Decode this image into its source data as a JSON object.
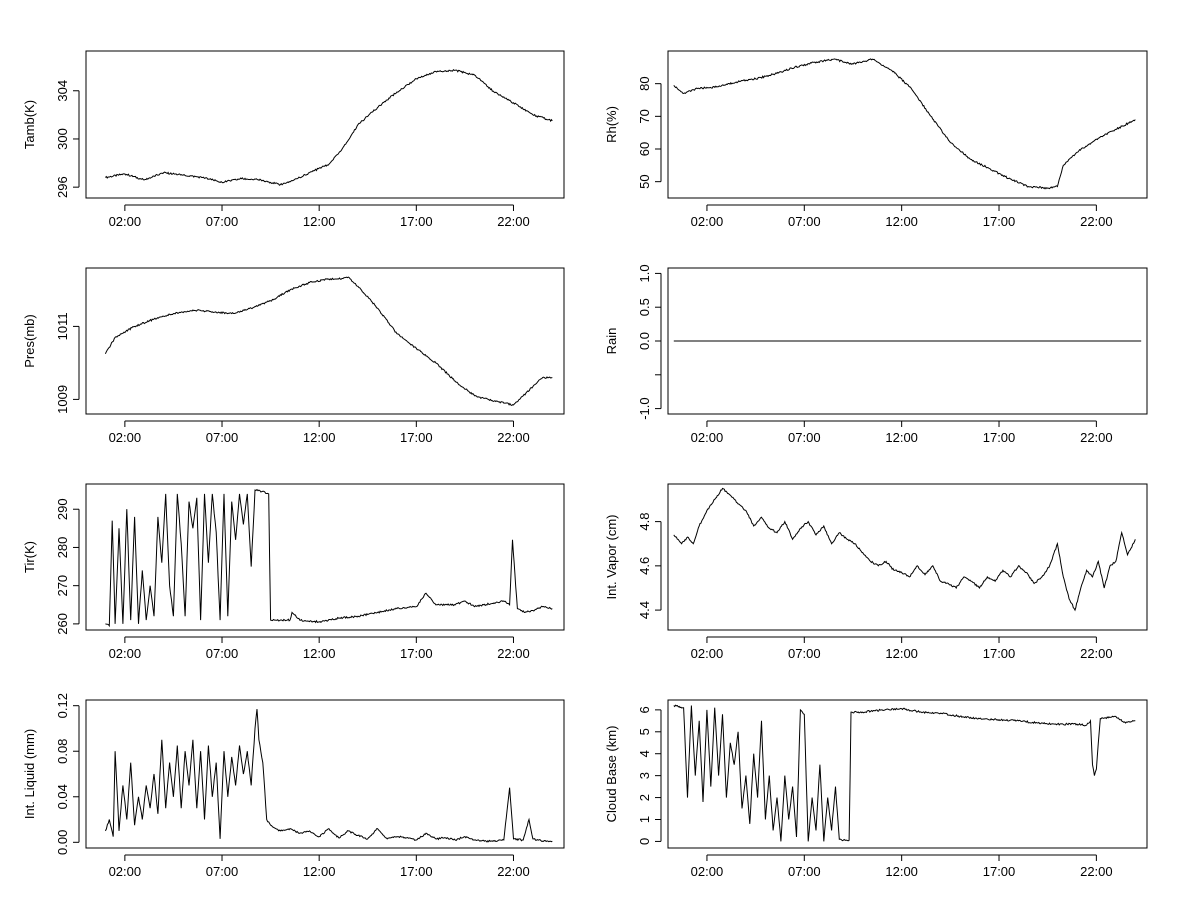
{
  "chart_data": [
    {
      "type": "line",
      "ylabel": "Tamb(K)",
      "xlabel": "",
      "xticks": [
        "02:00",
        "07:00",
        "12:00",
        "17:00",
        "22:00"
      ],
      "xtick_hours": [
        2,
        7,
        12,
        17,
        22
      ],
      "xlim": [
        0,
        24.6
      ],
      "ylim": [
        295.1,
        307.3
      ],
      "yticks": [
        296,
        300,
        304
      ],
      "ytick_labels": [
        "296",
        "300",
        "304"
      ],
      "series": [
        {
          "x": [
            1,
            2,
            3,
            4,
            5,
            6,
            7,
            8,
            9,
            10,
            11,
            11.5,
            12.5,
            13,
            13.5,
            14,
            15,
            16,
            17,
            18,
            19,
            20,
            20.5,
            21,
            22,
            23,
            24
          ],
          "y": [
            296.8,
            297.1,
            296.6,
            297.2,
            297.0,
            296.8,
            296.4,
            296.7,
            296.6,
            296.2,
            296.8,
            297.2,
            297.9,
            298.8,
            299.9,
            301.2,
            302.6,
            303.9,
            305.0,
            305.6,
            305.7,
            305.3,
            304.6,
            303.9,
            303.0,
            302.0,
            301.5
          ]
        }
      ]
    },
    {
      "type": "line",
      "ylabel": "Rh(%)",
      "xlabel": "",
      "xticks": [
        "02:00",
        "07:00",
        "12:00",
        "17:00",
        "22:00"
      ],
      "xtick_hours": [
        2,
        7,
        12,
        17,
        22
      ],
      "xlim": [
        0,
        24.6
      ],
      "ylim": [
        45,
        90
      ],
      "yticks": [
        50,
        60,
        70,
        80
      ],
      "ytick_labels": [
        "50",
        "60",
        "70",
        "80"
      ],
      "series": [
        {
          "x": [
            0.3,
            0.8,
            1.5,
            2.5,
            3.5,
            4.5,
            5.5,
            6.5,
            7.5,
            8.5,
            9.5,
            10.5,
            11.5,
            12.5,
            13.5,
            14.5,
            15.5,
            16.5,
            17.5,
            18.5,
            19.5,
            20,
            20.3,
            21,
            22,
            23,
            24
          ],
          "y": [
            79.5,
            77,
            78.5,
            79,
            80.5,
            81.5,
            83,
            85,
            86.5,
            87.5,
            86,
            87.5,
            84,
            78.5,
            70,
            62,
            57,
            54,
            51,
            48.5,
            48,
            48.5,
            55,
            59,
            63,
            66,
            69
          ]
        }
      ]
    },
    {
      "type": "line",
      "ylabel": "Pres(mb)",
      "xlabel": "",
      "xticks": [
        "02:00",
        "07:00",
        "12:00",
        "17:00",
        "22:00"
      ],
      "xtick_hours": [
        2,
        7,
        12,
        17,
        22
      ],
      "xlim": [
        0,
        24.6
      ],
      "ylim": [
        1008.6,
        1012.6
      ],
      "yticks": [
        1009,
        1011
      ],
      "ytick_labels": [
        "1009",
        "1011"
      ],
      "series": [
        {
          "x": [
            1,
            1.5,
            2.5,
            3.5,
            4.5,
            5.5,
            6.5,
            7.5,
            8.5,
            9.5,
            10.5,
            11.5,
            12.5,
            13,
            13.5,
            14,
            15,
            16,
            17,
            18,
            19,
            20,
            21,
            21.5,
            22,
            22.5,
            23,
            23.5,
            24
          ],
          "y": [
            1010.25,
            1010.7,
            1011,
            1011.2,
            1011.35,
            1011.45,
            1011.4,
            1011.35,
            1011.5,
            1011.7,
            1012,
            1012.2,
            1012.3,
            1012.3,
            1012.35,
            1012.1,
            1011.5,
            1010.8,
            1010.4,
            1010,
            1009.5,
            1009.1,
            1008.95,
            1008.9,
            1008.85,
            1009.1,
            1009.35,
            1009.6,
            1009.6
          ]
        }
      ]
    },
    {
      "type": "line",
      "ylabel": "Rain",
      "xlabel": "",
      "xticks": [
        "02:00",
        "07:00",
        "12:00",
        "17:00",
        "22:00"
      ],
      "xtick_hours": [
        2,
        7,
        12,
        17,
        22
      ],
      "xlim": [
        0,
        24.6
      ],
      "ylim": [
        -1.08,
        1.08
      ],
      "yticks": [
        -1.0,
        -0.5,
        0.0,
        0.5,
        1.0
      ],
      "ytick_labels": [
        "-1.0",
        "",
        "0.0",
        "0.5",
        "1.0"
      ],
      "series": [
        {
          "x": [
            0.3,
            24.3
          ],
          "y": [
            0,
            0
          ]
        }
      ]
    },
    {
      "type": "line",
      "ylabel": "Tir(K)",
      "xlabel": "",
      "xticks": [
        "02:00",
        "07:00",
        "12:00",
        "17:00",
        "22:00"
      ],
      "xtick_hours": [
        2,
        7,
        12,
        17,
        22
      ],
      "xlim": [
        0,
        24.6
      ],
      "ylim": [
        258.4,
        296.6
      ],
      "yticks": [
        260,
        270,
        280,
        290
      ],
      "ytick_labels": [
        "260",
        "270",
        "280",
        "290"
      ],
      "series": [
        {
          "x": [
            1,
            1.2,
            1.35,
            1.5,
            1.7,
            1.9,
            2.1,
            2.3,
            2.5,
            2.7,
            2.9,
            3.1,
            3.3,
            3.5,
            3.7,
            3.9,
            4.1,
            4.3,
            4.5,
            4.7,
            4.9,
            5.1,
            5.3,
            5.5,
            5.7,
            5.9,
            6.1,
            6.3,
            6.5,
            6.7,
            6.9,
            7.1,
            7.3,
            7.5,
            7.7,
            7.9,
            8.1,
            8.3,
            8.5,
            8.7,
            8.9,
            9.0,
            9.2,
            9.4,
            9.5,
            9.7,
            10,
            10.5,
            10.6,
            11,
            12,
            13,
            14,
            15,
            16,
            17,
            17.5,
            18,
            19,
            19.5,
            20,
            21,
            21.5,
            21.8,
            21.95,
            22.2,
            22.6,
            23,
            23.5,
            24
          ],
          "y": [
            260,
            259.5,
            287,
            260,
            285,
            260,
            290,
            261,
            288,
            260,
            274,
            261,
            270,
            262,
            288,
            276,
            294,
            270,
            262,
            294,
            281,
            262,
            292,
            285,
            293,
            261,
            294,
            276,
            294,
            284,
            261,
            294,
            262,
            292,
            282,
            294,
            286,
            294,
            275,
            295,
            295,
            294.5,
            294.5,
            294,
            261,
            261,
            261,
            261,
            263,
            261,
            260.5,
            261.5,
            262,
            263,
            264,
            264.5,
            268,
            265,
            265,
            266,
            264.5,
            265.5,
            266,
            265,
            282,
            264,
            263,
            263.5,
            264.5,
            264
          ]
        }
      ]
    },
    {
      "type": "line",
      "ylabel": "Int. Vapor (cm)",
      "xlabel": "",
      "xticks": [
        "02:00",
        "07:00",
        "12:00",
        "17:00",
        "22:00"
      ],
      "xtick_hours": [
        2,
        7,
        12,
        17,
        22
      ],
      "xlim": [
        0,
        24.6
      ],
      "ylim": [
        4.31,
        4.97
      ],
      "yticks": [
        4.4,
        4.6,
        4.8
      ],
      "ytick_labels": [
        "4.4",
        "4.6",
        "4.8"
      ],
      "series": [
        {
          "x": [
            0.3,
            0.7,
            1,
            1.3,
            1.6,
            2,
            2.4,
            2.8,
            3.2,
            3.6,
            4,
            4.4,
            4.8,
            5.2,
            5.6,
            6,
            6.4,
            6.8,
            7.2,
            7.6,
            8,
            8.4,
            8.8,
            9.2,
            9.6,
            10,
            10.4,
            10.8,
            11.2,
            11.6,
            12,
            12.4,
            12.8,
            13.2,
            13.6,
            14,
            14.4,
            14.8,
            15.2,
            15.6,
            16,
            16.4,
            16.8,
            17.2,
            17.6,
            18,
            18.4,
            18.8,
            19.2,
            19.6,
            20,
            20.3,
            20.6,
            20.9,
            21.2,
            21.5,
            21.8,
            22.1,
            22.4,
            22.7,
            23,
            23.3,
            23.6,
            24
          ],
          "y": [
            4.74,
            4.7,
            4.73,
            4.7,
            4.78,
            4.85,
            4.9,
            4.95,
            4.92,
            4.88,
            4.85,
            4.78,
            4.82,
            4.77,
            4.75,
            4.8,
            4.72,
            4.77,
            4.8,
            4.74,
            4.78,
            4.7,
            4.75,
            4.72,
            4.7,
            4.66,
            4.62,
            4.6,
            4.62,
            4.58,
            4.57,
            4.55,
            4.6,
            4.56,
            4.6,
            4.53,
            4.52,
            4.5,
            4.55,
            4.53,
            4.5,
            4.55,
            4.53,
            4.58,
            4.55,
            4.6,
            4.57,
            4.52,
            4.55,
            4.6,
            4.7,
            4.55,
            4.45,
            4.4,
            4.5,
            4.58,
            4.55,
            4.62,
            4.5,
            4.6,
            4.62,
            4.75,
            4.65,
            4.72
          ]
        }
      ]
    },
    {
      "type": "line",
      "ylabel": "Int. Liquid (mm)",
      "xlabel": "",
      "xticks": [
        "02:00",
        "07:00",
        "12:00",
        "17:00",
        "22:00"
      ],
      "xtick_hours": [
        2,
        7,
        12,
        17,
        22
      ],
      "xlim": [
        0,
        24.6
      ],
      "ylim": [
        -0.005,
        0.125
      ],
      "yticks": [
        0.0,
        0.04,
        0.08,
        0.12
      ],
      "ytick_labels": [
        "0.00",
        "0.04",
        "0.08",
        "0.12"
      ],
      "series": [
        {
          "x": [
            1,
            1.2,
            1.4,
            1.5,
            1.7,
            1.9,
            2.1,
            2.3,
            2.5,
            2.7,
            2.9,
            3.1,
            3.3,
            3.5,
            3.7,
            3.9,
            4.1,
            4.3,
            4.5,
            4.7,
            4.9,
            5.1,
            5.3,
            5.5,
            5.7,
            5.9,
            6.1,
            6.3,
            6.5,
            6.7,
            6.9,
            7.1,
            7.3,
            7.5,
            7.7,
            7.9,
            8.1,
            8.3,
            8.5,
            8.7,
            8.8,
            8.9,
            9.1,
            9.3,
            9.5,
            10,
            10.5,
            11,
            11.5,
            12,
            12.5,
            13,
            13.5,
            14,
            14.5,
            15,
            15.5,
            16,
            16.5,
            17,
            17.5,
            18,
            18.5,
            19,
            19.5,
            20,
            20.5,
            21,
            21.5,
            21.8,
            22,
            22.5,
            22.8,
            23,
            23.5,
            24
          ],
          "y": [
            0.01,
            0.02,
            0.005,
            0.08,
            0.01,
            0.05,
            0.02,
            0.07,
            0.015,
            0.04,
            0.02,
            0.05,
            0.03,
            0.06,
            0.025,
            0.09,
            0.03,
            0.07,
            0.04,
            0.085,
            0.03,
            0.08,
            0.05,
            0.09,
            0.03,
            0.08,
            0.02,
            0.085,
            0.04,
            0.07,
            0.003,
            0.08,
            0.04,
            0.075,
            0.05,
            0.085,
            0.06,
            0.08,
            0.05,
            0.1,
            0.117,
            0.09,
            0.07,
            0.02,
            0.015,
            0.01,
            0.012,
            0.008,
            0.01,
            0.005,
            0.012,
            0.004,
            0.01,
            0.006,
            0.003,
            0.012,
            0.003,
            0.005,
            0.004,
            0.002,
            0.008,
            0.003,
            0.004,
            0.002,
            0.005,
            0.002,
            0.001,
            0.001,
            0.002,
            0.048,
            0.003,
            0.002,
            0.02,
            0.003,
            0.001,
            0.001
          ]
        }
      ]
    },
    {
      "type": "line",
      "ylabel": "Cloud Base (km)",
      "xlabel": "",
      "xticks": [
        "02:00",
        "07:00",
        "12:00",
        "17:00",
        "22:00"
      ],
      "xtick_hours": [
        2,
        7,
        12,
        17,
        22
      ],
      "xlim": [
        0,
        24.6
      ],
      "ylim": [
        -0.3,
        6.45
      ],
      "yticks": [
        0,
        1,
        2,
        3,
        4,
        5,
        6
      ],
      "ytick_labels": [
        "0",
        "1",
        "2",
        "3",
        "4",
        "5",
        "6"
      ],
      "series": [
        {
          "x": [
            0.3,
            0.8,
            1,
            1.2,
            1.4,
            1.6,
            1.8,
            2,
            2.2,
            2.4,
            2.6,
            2.8,
            3,
            3.2,
            3.4,
            3.6,
            3.8,
            4,
            4.2,
            4.4,
            4.6,
            4.8,
            5,
            5.2,
            5.4,
            5.6,
            5.8,
            6,
            6.2,
            6.4,
            6.6,
            6.8,
            7,
            7.2,
            7.4,
            7.6,
            7.8,
            8,
            8.2,
            8.4,
            8.6,
            8.8,
            9,
            9.2,
            9.3,
            9.4,
            10,
            11,
            12,
            13,
            14,
            15,
            16,
            17,
            18,
            19,
            20,
            21,
            21.5,
            21.7,
            21.8,
            21.9,
            22,
            22.2,
            23,
            23.5,
            24
          ],
          "y": [
            6.2,
            6.1,
            2,
            6.2,
            3,
            5.5,
            1.8,
            6,
            2.5,
            6.1,
            3,
            5.8,
            2,
            4.5,
            3.5,
            5,
            1.5,
            3,
            0.8,
            4,
            2,
            5.5,
            1,
            3,
            0.5,
            2,
            0,
            3,
            1,
            2.5,
            0.2,
            6,
            5.8,
            0,
            2,
            0.5,
            3.5,
            0,
            2,
            0.5,
            2.5,
            0.1,
            0.05,
            0.05,
            0.05,
            5.9,
            5.9,
            6,
            6.05,
            5.9,
            5.85,
            5.7,
            5.6,
            5.55,
            5.5,
            5.4,
            5.35,
            5.35,
            5.3,
            5.5,
            3.5,
            3.0,
            3.3,
            5.6,
            5.7,
            5.4,
            5.5
          ]
        }
      ]
    }
  ]
}
